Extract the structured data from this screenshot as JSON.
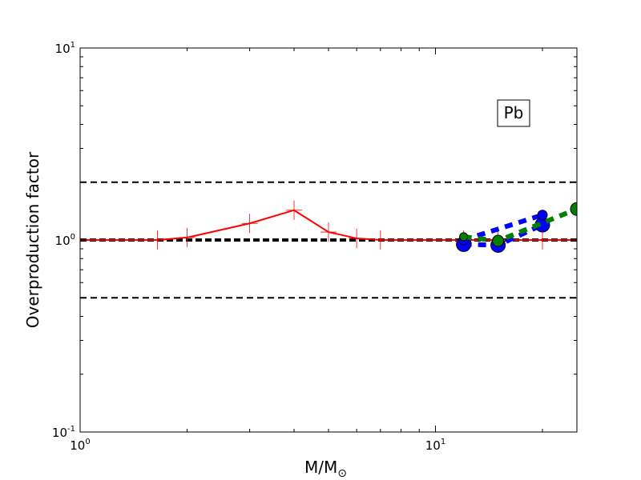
{
  "chart_data": {
    "type": "line",
    "xscale": "log",
    "yscale": "log",
    "xlim": [
      1,
      25
    ],
    "ylim": [
      0.1,
      10
    ],
    "xlabel_main": "M/M",
    "xlabel_sub": "⊙",
    "ylabel": "Overproduction factor",
    "x_ticks": [
      {
        "value": 1,
        "base": "10",
        "exp": "0"
      },
      {
        "value": 10,
        "base": "10",
        "exp": "1"
      }
    ],
    "y_ticks": [
      {
        "value": 0.1,
        "base": "10",
        "exp": "-1"
      },
      {
        "value": 1,
        "base": "10",
        "exp": "0"
      },
      {
        "value": 10,
        "base": "10",
        "exp": "1"
      }
    ],
    "annotation": "Pb",
    "reference_lines": [
      {
        "y": 2.0,
        "style": "dashed",
        "color": "#000000",
        "width": 2
      },
      {
        "y": 1.0,
        "style": "dashed",
        "color": "#000000",
        "width": 4
      },
      {
        "y": 0.5,
        "style": "dashed",
        "color": "#000000",
        "width": 2
      }
    ],
    "series": [
      {
        "style": "solid",
        "marker": "plus",
        "color": "#ff0000",
        "width": 2,
        "x": [
          1.0,
          1.65,
          2.0,
          3.0,
          4.0,
          5.0,
          6.0,
          7.0,
          12.0,
          15.0,
          20.0,
          25.0
        ],
        "y": [
          1.0,
          1.0,
          1.03,
          1.22,
          1.43,
          1.1,
          1.02,
          1.0,
          1.0,
          1.0,
          1.0,
          1.0
        ]
      },
      {
        "style": "dashed",
        "marker": "circle",
        "color": "#0000ff",
        "width": 6,
        "x": [
          12.0,
          15.0,
          20.0
        ],
        "y": [
          0.95,
          0.94,
          1.2
        ],
        "marker_sizes": [
          9,
          9,
          9
        ]
      },
      {
        "style": "dashed",
        "marker": "circle",
        "color": "#0000ff",
        "width": 6,
        "x": [
          12.0,
          20.0
        ],
        "y": [
          1.0,
          1.35
        ],
        "marker_sizes": [
          6,
          6
        ]
      },
      {
        "style": "dashed",
        "marker": "circle",
        "color": "#008000",
        "width": 6,
        "x": [
          12.0,
          15.0,
          25.0
        ],
        "y": [
          1.04,
          0.99,
          1.45
        ],
        "marker_sizes": [
          5,
          7,
          8
        ]
      }
    ]
  }
}
